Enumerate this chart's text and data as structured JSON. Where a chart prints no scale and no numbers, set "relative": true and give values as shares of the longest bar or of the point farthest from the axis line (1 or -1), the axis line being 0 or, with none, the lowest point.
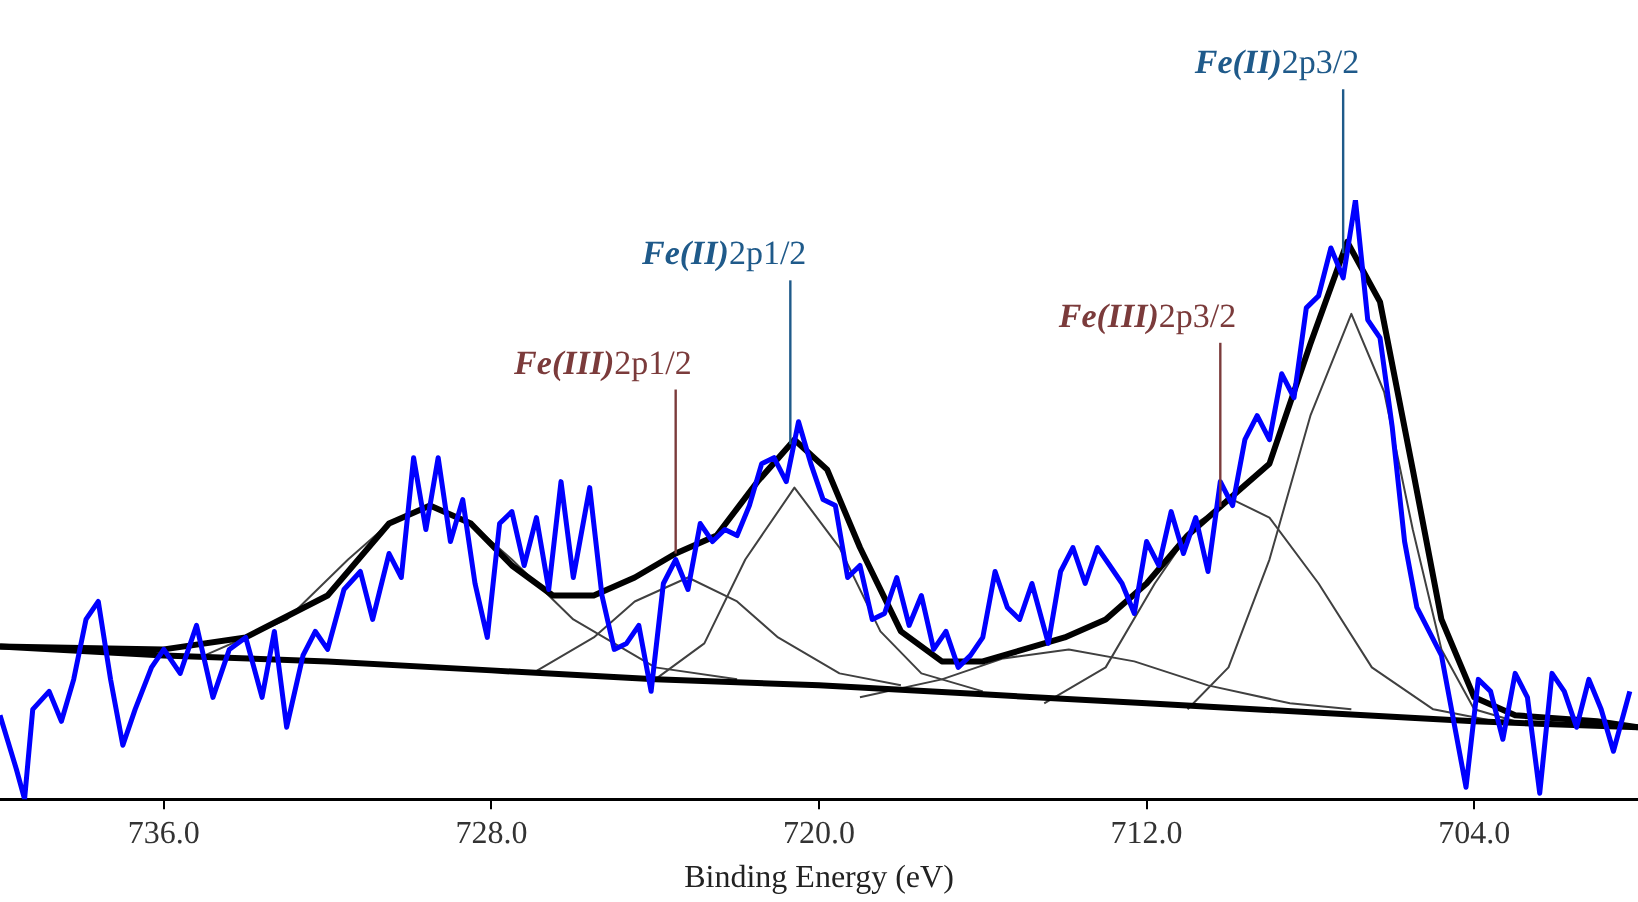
{
  "chart_data": {
    "type": "line",
    "xlabel": "Binding Energy (eV)",
    "relative": true,
    "xlim": [
      740,
      700
    ],
    "xticks": [
      {
        "value": 736,
        "label": "736.0"
      },
      {
        "value": 728,
        "label": "728.0"
      },
      {
        "value": 720,
        "label": "720.0"
      },
      {
        "value": 712,
        "label": "712.0"
      },
      {
        "value": 704,
        "label": "704.0"
      }
    ],
    "grid": false,
    "legend": false,
    "marker": "none",
    "line_style": "solid",
    "series": [
      {
        "color": "#0000ff",
        "x": [
          740.0,
          739.6,
          739.4,
          739.2,
          738.8,
          738.5,
          738.2,
          737.9,
          737.6,
          737.3,
          737.0,
          736.7,
          736.3,
          736.0,
          735.6,
          735.2,
          734.8,
          734.4,
          734.0,
          733.6,
          733.3,
          733.0,
          732.6,
          732.3,
          732.0,
          731.6,
          731.2,
          730.9,
          730.5,
          730.2,
          729.9,
          729.6,
          729.3,
          729.0,
          728.7,
          728.4,
          728.1,
          727.8,
          727.5,
          727.2,
          726.9,
          726.6,
          726.3,
          726.0,
          725.6,
          725.3,
          725.0,
          724.7,
          724.4,
          724.1,
          723.8,
          723.5,
          723.2,
          722.9,
          722.6,
          722.3,
          722.0,
          721.7,
          721.4,
          721.1,
          720.8,
          720.5,
          720.2,
          719.9,
          719.6,
          719.3,
          719.0,
          718.7,
          718.4,
          718.1,
          717.8,
          717.5,
          717.2,
          716.9,
          716.6,
          716.3,
          716.0,
          715.7,
          715.4,
          715.1,
          714.8,
          714.4,
          714.1,
          713.8,
          713.5,
          713.2,
          712.9,
          712.6,
          712.3,
          712.0,
          711.7,
          711.4,
          711.1,
          710.8,
          710.5,
          710.2,
          709.9,
          709.6,
          709.3,
          709.0,
          708.7,
          708.4,
          708.1,
          707.8,
          707.5,
          707.2,
          706.9,
          706.6,
          706.3,
          706.0,
          705.7,
          705.4,
          705.1,
          704.8,
          704.5,
          704.2,
          703.9,
          703.6,
          703.3,
          703.0,
          702.7,
          702.4,
          702.1,
          701.8,
          701.5,
          701.2,
          700.9,
          700.6,
          700.2
        ],
        "values": [
          0.14,
          0.05,
          0.0,
          0.15,
          0.18,
          0.13,
          0.2,
          0.3,
          0.33,
          0.2,
          0.09,
          0.15,
          0.22,
          0.25,
          0.21,
          0.29,
          0.17,
          0.25,
          0.27,
          0.17,
          0.28,
          0.12,
          0.24,
          0.28,
          0.25,
          0.35,
          0.38,
          0.3,
          0.41,
          0.37,
          0.57,
          0.45,
          0.57,
          0.43,
          0.5,
          0.36,
          0.27,
          0.46,
          0.48,
          0.39,
          0.47,
          0.35,
          0.53,
          0.37,
          0.52,
          0.34,
          0.25,
          0.26,
          0.29,
          0.18,
          0.36,
          0.4,
          0.35,
          0.46,
          0.43,
          0.45,
          0.44,
          0.49,
          0.56,
          0.57,
          0.53,
          0.63,
          0.56,
          0.5,
          0.49,
          0.37,
          0.39,
          0.3,
          0.31,
          0.37,
          0.29,
          0.34,
          0.25,
          0.28,
          0.22,
          0.24,
          0.27,
          0.38,
          0.32,
          0.3,
          0.36,
          0.26,
          0.38,
          0.42,
          0.36,
          0.42,
          0.39,
          0.36,
          0.31,
          0.43,
          0.39,
          0.48,
          0.41,
          0.47,
          0.38,
          0.53,
          0.49,
          0.6,
          0.64,
          0.6,
          0.71,
          0.67,
          0.82,
          0.84,
          0.92,
          0.87,
          1.0,
          0.8,
          0.77,
          0.62,
          0.43,
          0.32,
          0.28,
          0.24,
          0.13,
          0.02,
          0.2,
          0.18,
          0.1,
          0.21,
          0.17,
          0.01,
          0.21,
          0.18,
          0.12,
          0.2,
          0.15,
          0.08,
          0.18
        ]
      },
      {
        "color": "#000000",
        "x": [
          740,
          736,
          734,
          732,
          730.5,
          729.5,
          728.5,
          727.5,
          726.5,
          725.5,
          724.5,
          723.5,
          722.5,
          721.5,
          720.6,
          719.8,
          719,
          718,
          717,
          716,
          715,
          714,
          713,
          712,
          711,
          710,
          709,
          708,
          707.1,
          706.3,
          705.5,
          704.8,
          704,
          703,
          701,
          700
        ],
        "values": [
          0.255,
          0.25,
          0.27,
          0.34,
          0.46,
          0.49,
          0.46,
          0.39,
          0.34,
          0.34,
          0.37,
          0.41,
          0.44,
          0.53,
          0.6,
          0.55,
          0.42,
          0.28,
          0.23,
          0.23,
          0.25,
          0.27,
          0.3,
          0.36,
          0.44,
          0.5,
          0.56,
          0.76,
          0.93,
          0.83,
          0.55,
          0.3,
          0.17,
          0.14,
          0.13,
          0.12
        ]
      },
      {
        "color": "#000000",
        "x": [
          740,
          736,
          732,
          728,
          724,
          720,
          716,
          712,
          708,
          704,
          700
        ],
        "values": [
          0.255,
          0.24,
          0.23,
          0.215,
          0.2,
          0.19,
          0.175,
          0.16,
          0.145,
          0.13,
          0.12
        ]
      },
      {
        "color": "#404040",
        "x": [
          735,
          733,
          731.5,
          730.5,
          729.5,
          728.5,
          727.5,
          726,
          724,
          722
        ],
        "values": [
          0.24,
          0.3,
          0.4,
          0.46,
          0.49,
          0.46,
          0.4,
          0.3,
          0.22,
          0.2
        ]
      },
      {
        "color": "#404040",
        "x": [
          727,
          725.5,
          724.5,
          723.2,
          722,
          721,
          719.5,
          718
        ],
        "values": [
          0.21,
          0.27,
          0.33,
          0.37,
          0.33,
          0.27,
          0.21,
          0.19
        ]
      },
      {
        "color": "#404040",
        "x": [
          724,
          722.8,
          721.8,
          720.6,
          719.5,
          718.5,
          717.5,
          716
        ],
        "values": [
          0.2,
          0.26,
          0.4,
          0.52,
          0.42,
          0.28,
          0.21,
          0.18
        ]
      },
      {
        "color": "#404040",
        "x": [
          719,
          717,
          715.5,
          713.9,
          712.3,
          710.5,
          708.5,
          707
        ],
        "values": [
          0.17,
          0.2,
          0.235,
          0.25,
          0.23,
          0.19,
          0.16,
          0.15
        ]
      },
      {
        "color": "#404040",
        "x": [
          714.5,
          713,
          711.8,
          710.8,
          709.9,
          709,
          707.8,
          706.5,
          705,
          703.5
        ],
        "values": [
          0.16,
          0.22,
          0.36,
          0.46,
          0.5,
          0.47,
          0.36,
          0.22,
          0.15,
          0.13
        ]
      },
      {
        "color": "#404040",
        "x": [
          711,
          710,
          709,
          708,
          707,
          706.2,
          705.5,
          704.8,
          704,
          703
        ],
        "values": [
          0.15,
          0.22,
          0.4,
          0.64,
          0.81,
          0.68,
          0.45,
          0.25,
          0.15,
          0.13
        ]
      }
    ],
    "ref_lines": [
      {
        "axis": "x",
        "value": 723.5,
        "label": "Fe(III)2p1/2",
        "color": "#7b3b3b"
      },
      {
        "axis": "x",
        "value": 720.7,
        "label": "Fe(II)2p1/2",
        "color": "#1f5a8a"
      },
      {
        "axis": "x",
        "value": 710.2,
        "label": "Fe(III)2p3/2",
        "color": "#7b3b3b"
      },
      {
        "axis": "x",
        "value": 707.2,
        "label": "Fe(II)2p3/2",
        "color": "#1f5a8a"
      }
    ]
  }
}
